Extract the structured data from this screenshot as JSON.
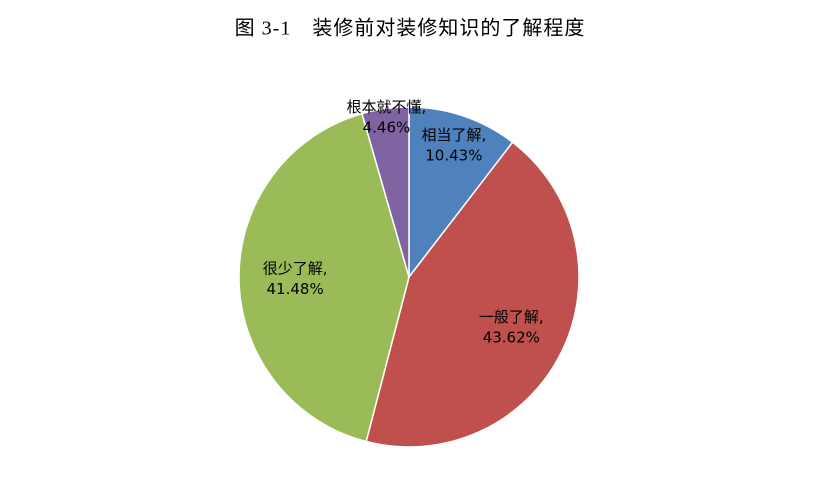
{
  "chart_data": {
    "type": "pie",
    "title": "图 3-1　装修前对装修知识的了解程度",
    "categories": [
      "相当了解",
      "一般了解",
      "很少了解",
      "根本就不懂"
    ],
    "values": [
      10.43,
      43.62,
      41.48,
      4.46
    ],
    "value_labels": [
      "10.43%",
      "43.62%",
      "41.48%",
      "4.46%"
    ],
    "label_separator": ",",
    "colors": [
      "#4f81bd",
      "#c0504d",
      "#9bbb59",
      "#8064a2"
    ]
  }
}
